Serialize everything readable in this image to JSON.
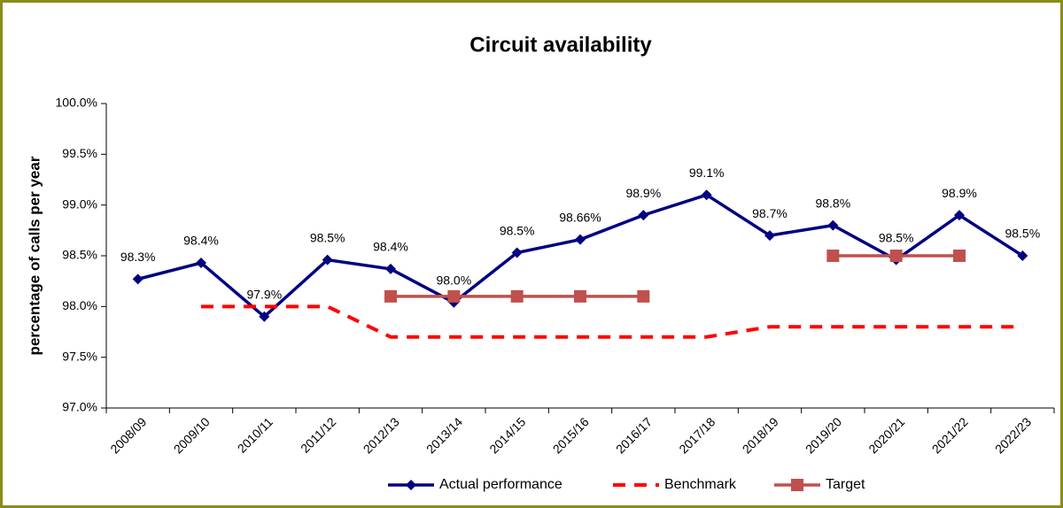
{
  "chart_data": {
    "type": "line",
    "title": "Circuit availability",
    "y_label": "percentage of calls per year",
    "categories": [
      "2008/09",
      "2009/10",
      "2010/11",
      "2011/12",
      "2012/13",
      "2013/14",
      "2014/15",
      "2015/16",
      "2016/17",
      "2017/18",
      "2018/19",
      "2019/20",
      "2020/21",
      "2021/22",
      "2022/23"
    ],
    "series": [
      {
        "name": "Actual performance",
        "color": "#000080",
        "marker": "diamond",
        "dash": false,
        "values": [
          98.27,
          98.43,
          97.9,
          98.46,
          98.37,
          98.04,
          98.53,
          98.66,
          98.9,
          99.1,
          98.7,
          98.8,
          98.46,
          98.9,
          98.5
        ],
        "value_labels": [
          "98.3%",
          "98.4%",
          "97.9%",
          "98.5%",
          "98.4%",
          "98.0%",
          "98.5%",
          "98.66%",
          "98.9%",
          "99.1%",
          "98.7%",
          "98.8%",
          "98.5%",
          "98.9%",
          "98.5%"
        ]
      },
      {
        "name": "Benchmark",
        "color": "#ff0000",
        "marker": "none",
        "dash": true,
        "values": [
          null,
          98.0,
          98.0,
          98.0,
          97.7,
          97.7,
          97.7,
          97.7,
          97.7,
          97.7,
          97.8,
          97.8,
          97.8,
          97.8,
          97.8
        ]
      },
      {
        "name": "Target",
        "color": "#c0504d",
        "marker": "square",
        "dash": false,
        "values": [
          null,
          null,
          null,
          null,
          98.1,
          98.1,
          98.1,
          98.1,
          98.1,
          null,
          null,
          98.5,
          98.5,
          98.5,
          null
        ]
      }
    ],
    "ylim": [
      97,
      100
    ],
    "yticks": [
      {
        "value": 97,
        "label": "97.0%"
      },
      {
        "value": 97.5,
        "label": "97.5%"
      },
      {
        "value": 98,
        "label": "98.0%"
      },
      {
        "value": 98.5,
        "label": "98.5%"
      },
      {
        "value": 99,
        "label": "99.0%"
      },
      {
        "value": 99.5,
        "label": "99.5%"
      },
      {
        "value": 100,
        "label": "100.0%"
      }
    ],
    "grid": false,
    "legend": "bottom"
  }
}
